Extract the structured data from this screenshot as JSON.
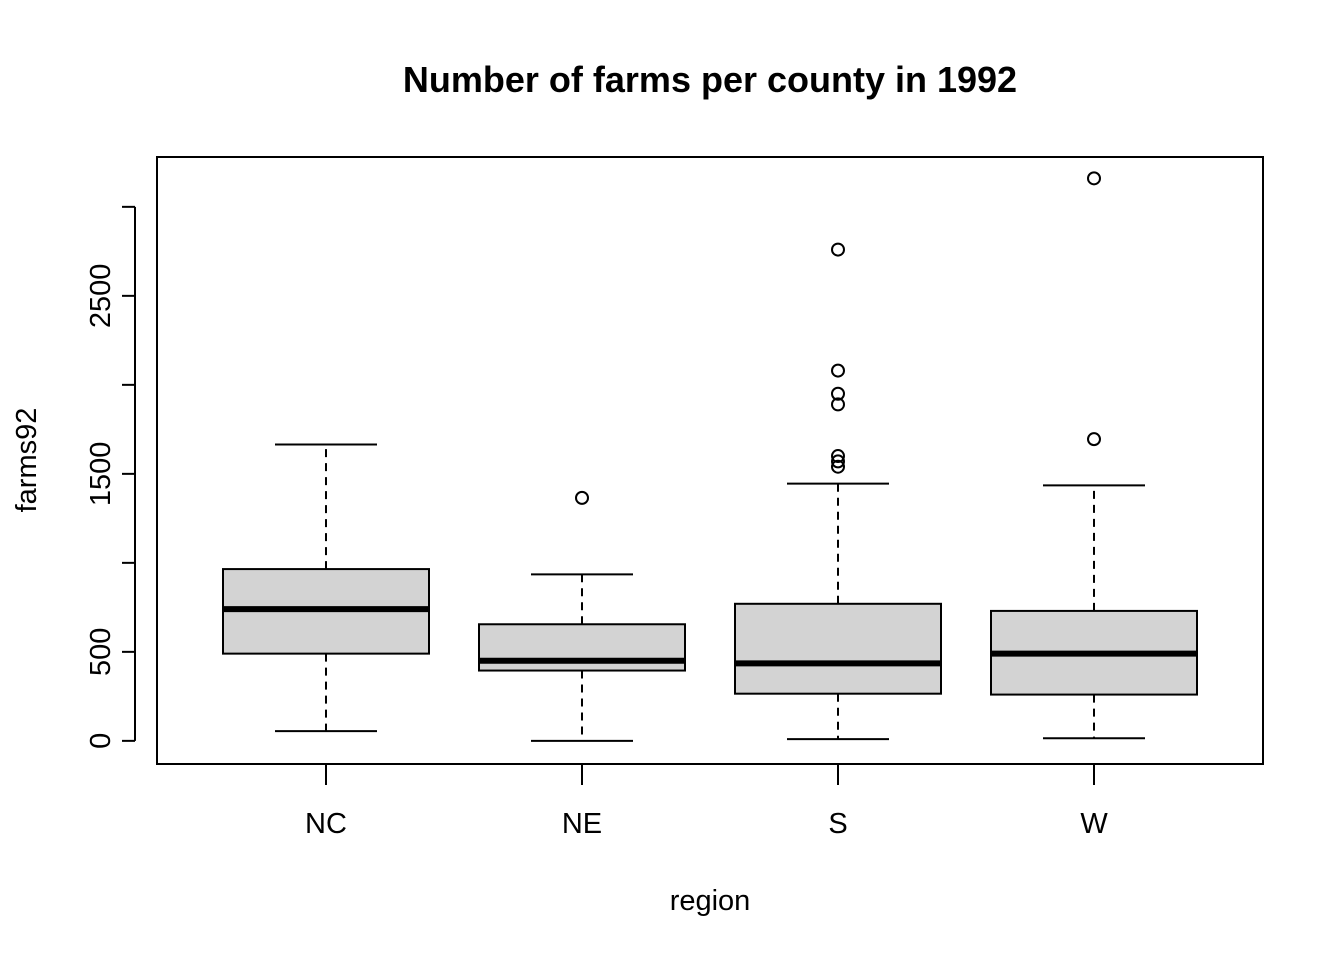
{
  "chart_data": {
    "type": "boxplot",
    "title": "Number of farms per county in 1992",
    "xlabel": "region",
    "ylabel": "farms92",
    "categories": [
      "NC",
      "NE",
      "S",
      "W"
    ],
    "y_ticks": [
      0,
      500,
      1000,
      1500,
      2000,
      2500,
      3000
    ],
    "y_tick_labels": [
      "0",
      "500",
      "",
      "1500",
      "",
      "2500",
      ""
    ],
    "ylim": [
      -130,
      3280
    ],
    "box_fill": "#d3d3d3",
    "boxes": [
      {
        "category": "NC",
        "whisker_low": 55,
        "q1": 490,
        "median": 740,
        "q3": 965,
        "whisker_high": 1665,
        "outliers": []
      },
      {
        "category": "NE",
        "whisker_low": 0,
        "q1": 395,
        "median": 450,
        "q3": 655,
        "whisker_high": 935,
        "outliers": [
          1365
        ]
      },
      {
        "category": "S",
        "whisker_low": 10,
        "q1": 265,
        "median": 435,
        "q3": 770,
        "whisker_high": 1445,
        "outliers": [
          1540,
          1570,
          1600,
          1890,
          1950,
          2080,
          2760
        ]
      },
      {
        "category": "W",
        "whisker_low": 15,
        "q1": 260,
        "median": 490,
        "q3": 730,
        "whisker_high": 1435,
        "outliers": [
          1695,
          3160
        ]
      }
    ],
    "grid": false,
    "legend": "none"
  }
}
